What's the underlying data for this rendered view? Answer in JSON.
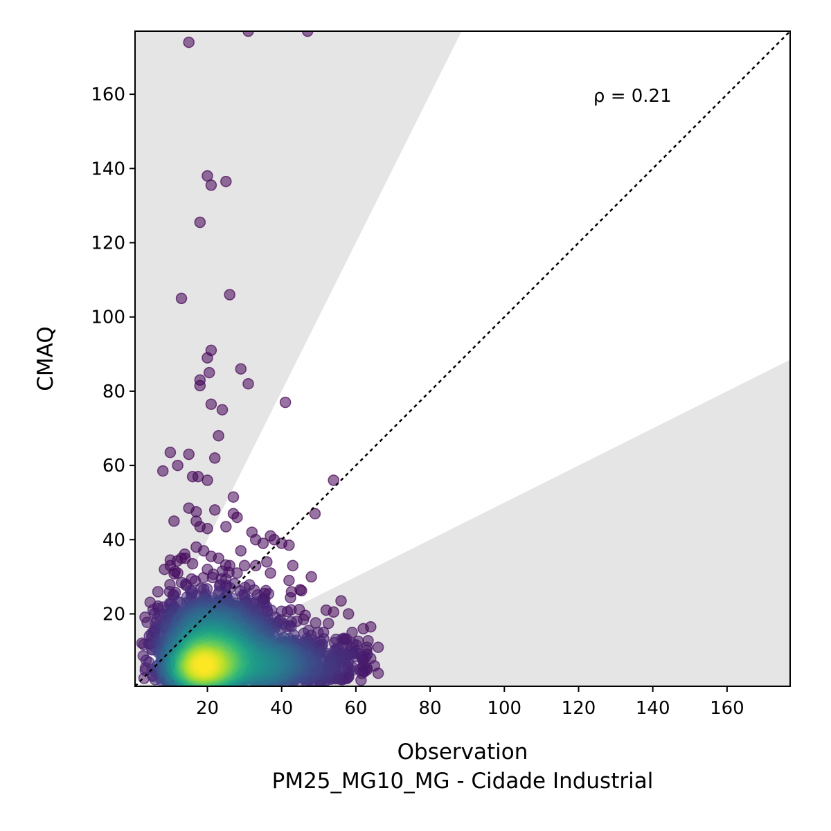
{
  "chart_data": {
    "type": "scatter",
    "xlabel": "Observation",
    "xlabel2": "PM25_MG10_MG - Cidade Industrial",
    "ylabel": "CMAQ",
    "xlim": [
      0.5,
      177
    ],
    "ylim": [
      0.5,
      177
    ],
    "xticks": [
      20,
      40,
      60,
      80,
      100,
      120,
      140,
      160
    ],
    "yticks": [
      20,
      40,
      60,
      80,
      100,
      120,
      140,
      160
    ],
    "annotation": "ρ = 0.21",
    "annotation_pos": [
      124,
      158
    ],
    "reference_line": "1:1",
    "shaded_band": {
      "upper_factor": 2.0,
      "lower_factor": 0.5,
      "color": "#e5e5e5"
    },
    "colormap": "viridis",
    "outliers": [
      [
        15,
        174
      ],
      [
        31,
        177
      ],
      [
        47,
        177
      ],
      [
        20,
        138
      ],
      [
        21,
        135.5
      ],
      [
        25,
        136.5
      ],
      [
        18,
        125.5
      ],
      [
        13,
        105
      ],
      [
        26,
        106
      ],
      [
        21,
        91
      ],
      [
        20,
        89
      ],
      [
        29,
        86
      ],
      [
        20.5,
        85
      ],
      [
        18,
        83
      ],
      [
        18,
        81.5
      ],
      [
        31,
        82
      ],
      [
        41,
        77
      ],
      [
        21,
        76.5
      ],
      [
        24,
        75
      ],
      [
        23,
        68
      ],
      [
        10,
        63.5
      ],
      [
        15,
        63
      ],
      [
        12,
        60
      ],
      [
        8,
        58.5
      ],
      [
        22,
        62
      ],
      [
        16,
        57
      ],
      [
        17.5,
        57
      ],
      [
        20,
        56
      ],
      [
        54,
        56
      ],
      [
        27,
        51.5
      ],
      [
        15,
        48.5
      ],
      [
        17,
        47.5
      ],
      [
        22,
        48
      ],
      [
        49,
        47
      ],
      [
        11,
        45
      ],
      [
        27,
        47
      ],
      [
        28,
        46
      ],
      [
        17,
        45
      ],
      [
        18,
        43.5
      ],
      [
        20,
        43
      ],
      [
        25,
        43.5
      ],
      [
        32,
        42
      ],
      [
        37,
        41
      ],
      [
        38,
        40
      ],
      [
        40,
        39
      ],
      [
        42,
        38.5
      ],
      [
        33,
        40
      ],
      [
        35,
        39
      ],
      [
        29,
        37
      ],
      [
        17,
        38
      ],
      [
        19,
        37
      ],
      [
        21,
        35.5
      ],
      [
        23,
        35
      ],
      [
        10,
        34.5
      ],
      [
        10,
        33
      ],
      [
        13,
        35
      ],
      [
        14,
        35
      ],
      [
        16,
        33.5
      ],
      [
        20,
        32
      ],
      [
        26,
        33
      ],
      [
        30,
        33
      ],
      [
        33,
        33
      ],
      [
        36,
        34
      ],
      [
        43,
        33
      ],
      [
        24,
        31.5
      ],
      [
        28,
        31
      ],
      [
        12,
        31
      ],
      [
        37,
        31
      ],
      [
        42,
        29
      ],
      [
        48,
        30
      ],
      [
        45,
        26.5
      ],
      [
        56,
        23.5
      ],
      [
        52,
        21
      ],
      [
        54,
        20.5
      ],
      [
        58,
        20
      ],
      [
        62,
        16
      ],
      [
        64,
        16.5
      ],
      [
        59,
        15
      ],
      [
        63,
        11
      ],
      [
        66,
        11
      ],
      [
        60,
        10
      ],
      [
        65,
        6
      ],
      [
        66,
        4
      ],
      [
        61,
        5
      ],
      [
        64,
        8
      ],
      [
        56,
        7
      ]
    ],
    "density_clusters": [
      {
        "cx": 20,
        "cy": 8,
        "sx": 6,
        "sy": 5,
        "n": 900
      },
      {
        "cx": 30,
        "cy": 6,
        "sx": 10,
        "sy": 4,
        "n": 800
      },
      {
        "cx": 45,
        "cy": 7,
        "sx": 10,
        "sy": 4,
        "n": 350
      },
      {
        "cx": 22,
        "cy": 18,
        "sx": 7,
        "sy": 5,
        "n": 400
      },
      {
        "cx": 30,
        "cy": 15,
        "sx": 8,
        "sy": 5,
        "n": 250
      },
      {
        "cx": 17,
        "cy": 5,
        "sx": 2.8,
        "sy": 2.2,
        "n": 350
      },
      {
        "cx": 12,
        "cy": 14,
        "sx": 4,
        "sy": 6,
        "n": 150
      }
    ]
  }
}
